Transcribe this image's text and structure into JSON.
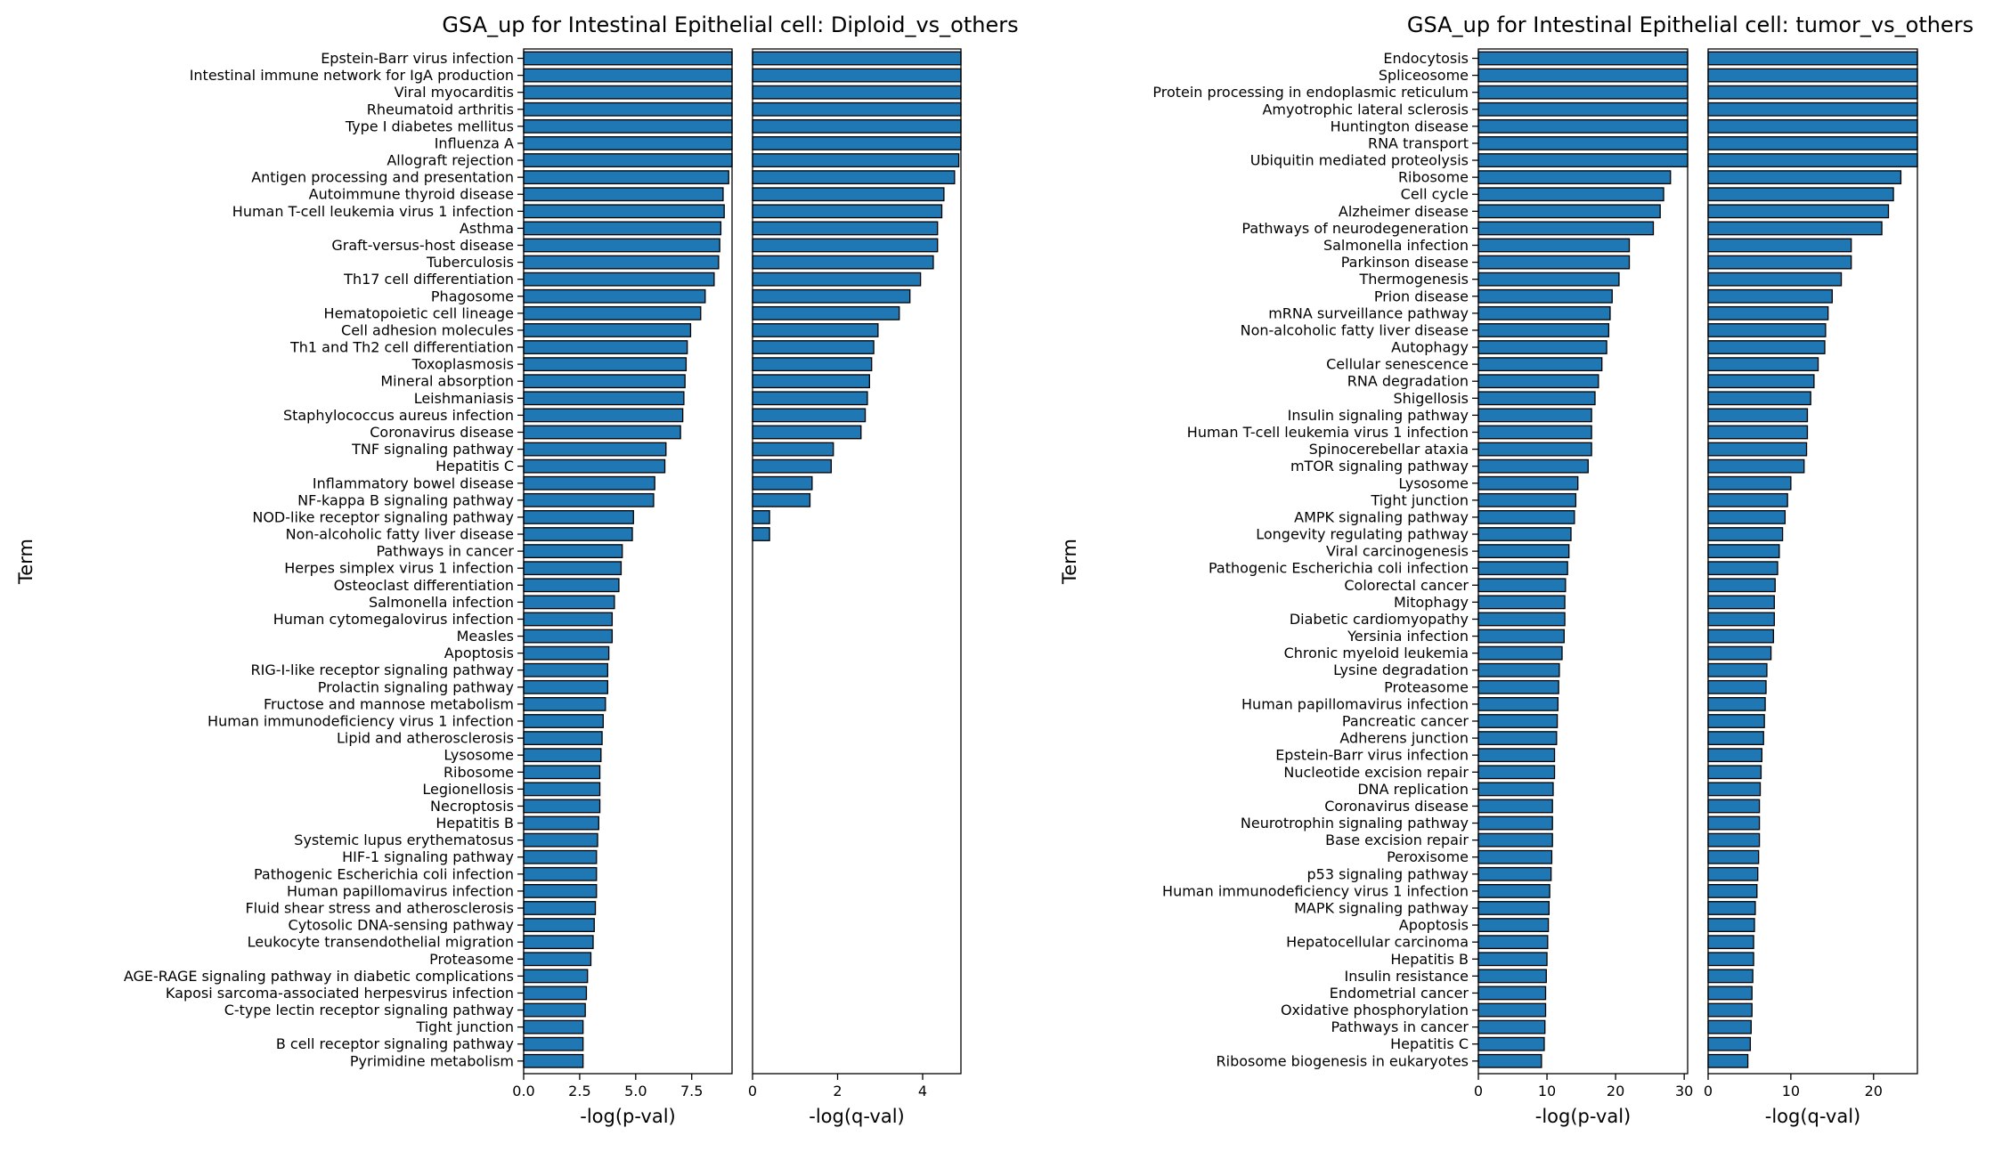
{
  "chart_data": [
    {
      "type": "bar",
      "orientation": "horizontal",
      "title": "GSA_up for Intestinal Epithelial cell: Diploid_vs_others",
      "ylabel": "Term",
      "bar_color": "#1f77b4",
      "edge_color": "#000000",
      "categories": [
        "Epstein-Barr virus infection",
        "Intestinal immune network for IgA production",
        "Viral myocarditis",
        "Rheumatoid arthritis",
        "Type I diabetes mellitus",
        "Influenza A",
        "Allograft rejection",
        "Antigen processing and presentation",
        "Autoimmune thyroid disease",
        "Human T-cell leukemia virus 1 infection",
        "Asthma",
        "Graft-versus-host disease",
        "Tuberculosis",
        "Th17 cell differentiation",
        "Phagosome",
        "Hematopoietic cell lineage",
        "Cell adhesion molecules",
        "Th1 and Th2 cell differentiation",
        "Toxoplasmosis",
        "Mineral absorption",
        "Leishmaniasis",
        "Staphylococcus aureus infection",
        "Coronavirus disease",
        "TNF signaling pathway",
        "Hepatitis C",
        "Inflammatory bowel disease",
        "NF-kappa B signaling pathway",
        "NOD-like receptor signaling pathway",
        "Non-alcoholic fatty liver disease",
        "Pathways in cancer",
        "Herpes simplex virus 1 infection",
        "Osteoclast differentiation",
        "Salmonella infection",
        "Human cytomegalovirus infection",
        "Measles",
        "Apoptosis",
        "RIG-I-like receptor signaling pathway",
        "Prolactin signaling pathway",
        "Fructose and mannose metabolism",
        "Human immunodeficiency virus 1 infection",
        "Lipid and atherosclerosis",
        "Lysosome",
        "Ribosome",
        "Legionellosis",
        "Necroptosis",
        "Hepatitis B",
        "Systemic lupus erythematosus",
        "HIF-1 signaling pathway",
        "Pathogenic Escherichia coli infection",
        "Human papillomavirus infection",
        "Fluid shear stress and atherosclerosis",
        "Cytosolic DNA-sensing pathway",
        "Leukocyte transendothelial migration",
        "Proteasome",
        "AGE-RAGE signaling pathway in diabetic complications",
        "Kaposi sarcoma-associated herpesvirus infection",
        "C-type lectin receptor signaling pathway",
        "Tight junction",
        "B cell receptor signaling pathway",
        "Pyrimidine metabolism"
      ],
      "panels": [
        {
          "xlabel": "-log(p-val)",
          "xlim": [
            0,
            9.3
          ],
          "xticks": [
            0,
            2.5,
            5,
            7.5
          ],
          "xtick_labels": [
            "0.0",
            "2.5",
            "5.0",
            "7.5"
          ],
          "values": [
            9.3,
            9.3,
            9.3,
            9.3,
            9.3,
            9.3,
            9.3,
            9.15,
            8.9,
            8.95,
            8.8,
            8.75,
            8.7,
            8.5,
            8.1,
            7.9,
            7.45,
            7.3,
            7.25,
            7.2,
            7.15,
            7.1,
            7.0,
            6.35,
            6.3,
            5.85,
            5.8,
            4.9,
            4.85,
            4.4,
            4.35,
            4.25,
            4.05,
            3.95,
            3.95,
            3.8,
            3.75,
            3.75,
            3.65,
            3.55,
            3.5,
            3.45,
            3.4,
            3.4,
            3.4,
            3.35,
            3.3,
            3.25,
            3.25,
            3.25,
            3.2,
            3.15,
            3.1,
            3.0,
            2.85,
            2.8,
            2.75,
            2.65,
            2.65,
            2.65
          ]
        },
        {
          "xlabel": "-log(q-val)",
          "xlim": [
            0,
            4.9
          ],
          "xticks": [
            0,
            2,
            4
          ],
          "xtick_labels": [
            "0",
            "2",
            "4"
          ],
          "values": [
            4.9,
            4.9,
            4.9,
            4.9,
            4.9,
            4.9,
            4.85,
            4.75,
            4.5,
            4.45,
            4.35,
            4.35,
            4.25,
            3.95,
            3.7,
            3.45,
            2.95,
            2.85,
            2.8,
            2.75,
            2.7,
            2.65,
            2.55,
            1.9,
            1.85,
            1.4,
            1.35,
            0.4,
            0.4,
            0,
            0,
            0,
            0,
            0,
            0,
            0,
            0,
            0,
            0,
            0,
            0,
            0,
            0,
            0,
            0,
            0,
            0,
            0,
            0,
            0,
            0,
            0,
            0,
            0,
            0,
            0,
            0,
            0,
            0,
            0
          ]
        }
      ]
    },
    {
      "type": "bar",
      "orientation": "horizontal",
      "title": "GSA_up for Intestinal Epithelial cell: tumor_vs_others",
      "ylabel": "Term",
      "bar_color": "#1f77b4",
      "edge_color": "#000000",
      "categories": [
        "Endocytosis",
        "Spliceosome",
        "Protein processing in endoplasmic reticulum",
        "Amyotrophic lateral sclerosis",
        "Huntington disease",
        "RNA transport",
        "Ubiquitin mediated proteolysis",
        "Ribosome",
        "Cell cycle",
        "Alzheimer disease",
        "Pathways of neurodegeneration",
        "Salmonella infection",
        "Parkinson disease",
        "Thermogenesis",
        "Prion disease",
        "mRNA surveillance pathway",
        "Non-alcoholic fatty liver disease",
        "Autophagy",
        "Cellular senescence",
        "RNA degradation",
        "Shigellosis",
        "Insulin signaling pathway",
        "Human T-cell leukemia virus 1 infection",
        "Spinocerebellar ataxia",
        "mTOR signaling pathway",
        "Lysosome",
        "Tight junction",
        "AMPK signaling pathway",
        "Longevity regulating pathway",
        "Viral carcinogenesis",
        "Pathogenic Escherichia coli infection",
        "Colorectal cancer",
        "Mitophagy",
        "Diabetic cardiomyopathy",
        "Yersinia infection",
        "Chronic myeloid leukemia",
        "Lysine degradation",
        "Proteasome",
        "Human papillomavirus infection",
        "Pancreatic cancer",
        "Adherens junction",
        "Epstein-Barr virus infection",
        "Nucleotide excision repair",
        "DNA replication",
        "Coronavirus disease",
        "Neurotrophin signaling pathway",
        "Base excision repair",
        "Peroxisome",
        "p53 signaling pathway",
        "Human immunodeficiency virus 1 infection",
        "MAPK signaling pathway",
        "Apoptosis",
        "Hepatocellular carcinoma",
        "Hepatitis B",
        "Insulin resistance",
        "Endometrial cancer",
        "Oxidative phosphorylation",
        "Pathways in cancer",
        "Hepatitis C",
        "Ribosome biogenesis in eukaryotes"
      ],
      "panels": [
        {
          "xlabel": "-log(p-val)",
          "xlim": [
            0,
            30.5
          ],
          "xticks": [
            0,
            10,
            20,
            30
          ],
          "xtick_labels": [
            "0",
            "10",
            "20",
            "30"
          ],
          "values": [
            30.5,
            30.5,
            30.5,
            30.5,
            30.5,
            30.5,
            30.5,
            28.0,
            27.0,
            26.5,
            25.5,
            22.0,
            22.0,
            20.5,
            19.5,
            19.2,
            19.0,
            18.7,
            18.0,
            17.5,
            17.0,
            16.5,
            16.5,
            16.5,
            16.0,
            14.5,
            14.2,
            14.0,
            13.5,
            13.2,
            13.0,
            12.7,
            12.6,
            12.6,
            12.5,
            12.2,
            11.8,
            11.7,
            11.6,
            11.5,
            11.4,
            11.1,
            11.1,
            10.9,
            10.8,
            10.8,
            10.8,
            10.7,
            10.6,
            10.4,
            10.3,
            10.2,
            10.1,
            10.0,
            9.9,
            9.8,
            9.8,
            9.7,
            9.6,
            9.2
          ]
        },
        {
          "xlabel": "-log(q-val)",
          "xlim": [
            0,
            25.3
          ],
          "xticks": [
            0,
            10,
            20
          ],
          "xtick_labels": [
            "0",
            "10",
            "20"
          ],
          "values": [
            25.3,
            25.3,
            25.3,
            25.3,
            25.3,
            25.3,
            25.3,
            23.3,
            22.4,
            21.8,
            21.0,
            17.3,
            17.3,
            16.1,
            15.0,
            14.5,
            14.2,
            14.1,
            13.3,
            12.8,
            12.4,
            12.0,
            12.0,
            11.9,
            11.6,
            10.0,
            9.6,
            9.3,
            9.0,
            8.6,
            8.4,
            8.1,
            8.0,
            8.0,
            7.9,
            7.6,
            7.1,
            7.0,
            6.9,
            6.8,
            6.7,
            6.5,
            6.4,
            6.3,
            6.2,
            6.2,
            6.2,
            6.1,
            6.0,
            5.9,
            5.7,
            5.6,
            5.5,
            5.5,
            5.4,
            5.3,
            5.3,
            5.2,
            5.1,
            4.8
          ]
        }
      ]
    }
  ]
}
